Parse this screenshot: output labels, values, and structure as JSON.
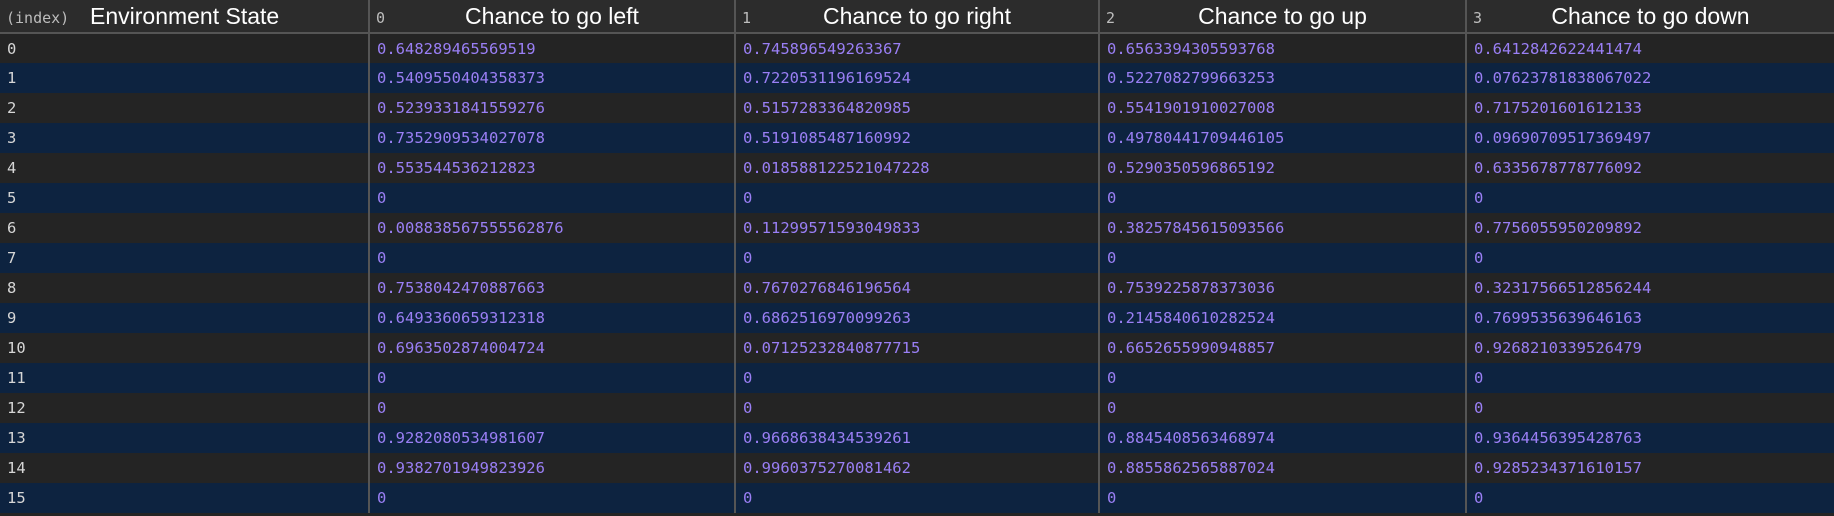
{
  "table": {
    "index_label": "(index)",
    "columns": [
      {
        "index": "",
        "name": "Environment State"
      },
      {
        "index": "0",
        "name": "Chance to go left"
      },
      {
        "index": "1",
        "name": "Chance to go right"
      },
      {
        "index": "2",
        "name": "Chance to go up"
      },
      {
        "index": "3",
        "name": "Chance to go down"
      }
    ],
    "rows": [
      {
        "state": "0",
        "values": [
          "0.648289465569519",
          "0.745896549263367",
          "0.6563394305593768",
          "0.6412842622441474"
        ]
      },
      {
        "state": "1",
        "values": [
          "0.5409550404358373",
          "0.7220531196169524",
          "0.5227082799663253",
          "0.07623781838067022"
        ]
      },
      {
        "state": "2",
        "values": [
          "0.5239331841559276",
          "0.5157283364820985",
          "0.5541901910027008",
          "0.7175201601612133"
        ]
      },
      {
        "state": "3",
        "values": [
          "0.7352909534027078",
          "0.5191085487160992",
          "0.49780441709446105",
          "0.09690709517369497"
        ]
      },
      {
        "state": "4",
        "values": [
          "0.553544536212823",
          "0.018588122521047228",
          "0.5290350596865192",
          "0.6335678778776092"
        ]
      },
      {
        "state": "5",
        "values": [
          "0",
          "0",
          "0",
          "0"
        ]
      },
      {
        "state": "6",
        "values": [
          "0.008838567555562876",
          "0.11299571593049833",
          "0.38257845615093566",
          "0.7756055950209892"
        ]
      },
      {
        "state": "7",
        "values": [
          "0",
          "0",
          "0",
          "0"
        ]
      },
      {
        "state": "8",
        "values": [
          "0.7538042470887663",
          "0.7670276846196564",
          "0.7539225878373036",
          "0.32317566512856244"
        ]
      },
      {
        "state": "9",
        "values": [
          "0.6493360659312318",
          "0.6862516970099263",
          "0.2145840610282524",
          "0.7699535639646163"
        ]
      },
      {
        "state": "10",
        "values": [
          "0.6963502874004724",
          "0.07125232840877715",
          "0.6652655990948857",
          "0.9268210339526479"
        ]
      },
      {
        "state": "11",
        "values": [
          "0",
          "0",
          "0",
          "0"
        ]
      },
      {
        "state": "12",
        "values": [
          "0",
          "0",
          "0",
          "0"
        ]
      },
      {
        "state": "13",
        "values": [
          "0.9282080534981607",
          "0.9668638434539261",
          "0.8845408563468974",
          "0.9364456395428763"
        ]
      },
      {
        "state": "14",
        "values": [
          "0.9382701949823926",
          "0.9960375270081462",
          "0.8855862565887024",
          "0.9285234371610157"
        ]
      },
      {
        "state": "15",
        "values": [
          "0",
          "0",
          "0",
          "0"
        ]
      }
    ]
  },
  "colors": {
    "header_background": "#2c2c2c",
    "row_even_background": "#242424",
    "row_odd_background": "#0d2340",
    "value_text": "#9a7ff5",
    "index_text": "#d6d6d6",
    "grid_line": "#555555"
  }
}
